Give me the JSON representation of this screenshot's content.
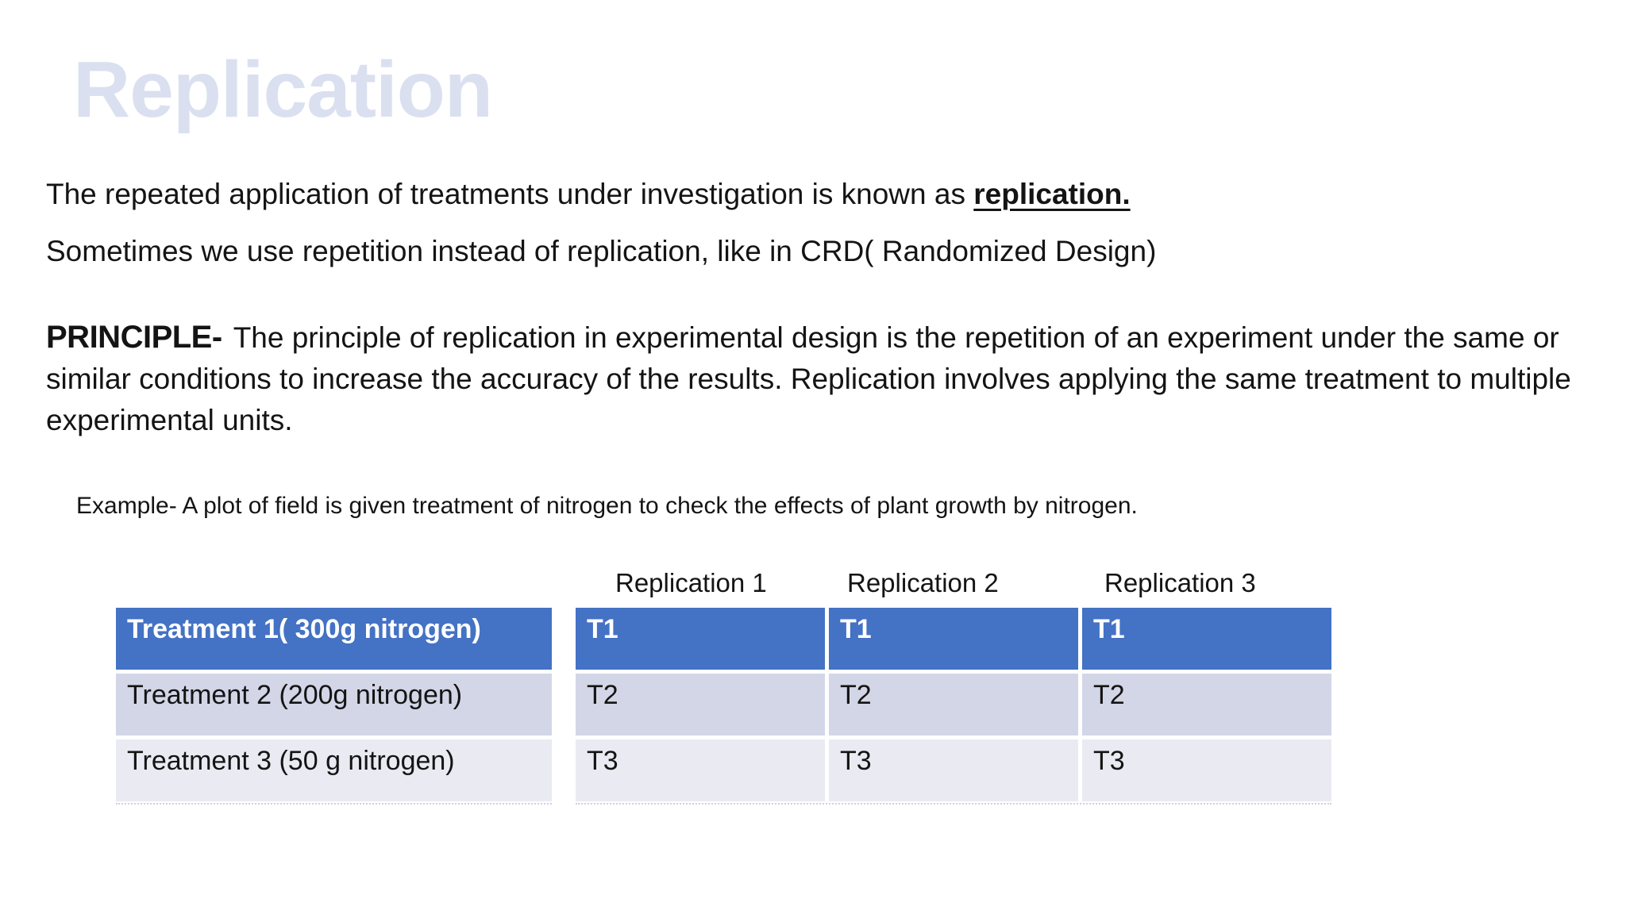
{
  "slide": {
    "title": "Replication",
    "intro_line1_text": "The repeated application of treatments under investigation is known as ",
    "intro_line1_keyword": "replication.",
    "intro_line2": "Sometimes we use repetition instead of replication, like in CRD( Randomized Design)",
    "principle_label": "PRINCIPLE-",
    "principle_text": "The principle of replication in experimental design is the repetition of an experiment under the same or similar conditions to increase the accuracy of the results. Replication involves applying the same treatment to multiple experimental units.",
    "example_text": "Example- A plot of field is given treatment of nitrogen to check the effects of plant growth by nitrogen."
  },
  "table": {
    "column_headers": [
      "Replication 1",
      "Replication 2",
      "Replication 3"
    ],
    "rows": [
      {
        "treatment": "Treatment 1( 300g nitrogen)",
        "cells": [
          "T1",
          "T1",
          "T1"
        ]
      },
      {
        "treatment": "Treatment 2 (200g nitrogen)",
        "cells": [
          "T2",
          "T2",
          "T2"
        ]
      },
      {
        "treatment": "Treatment 3 (50 g nitrogen)",
        "cells": [
          "T3",
          "T3",
          "T3"
        ]
      }
    ]
  },
  "colors": {
    "treatment_row_blue": "#4472C4",
    "row_light_lavender": "#D2D6E7",
    "row_lighter": "#E9EAF2",
    "title_watermark": "#DAE0EF",
    "body_text": "#141414"
  }
}
